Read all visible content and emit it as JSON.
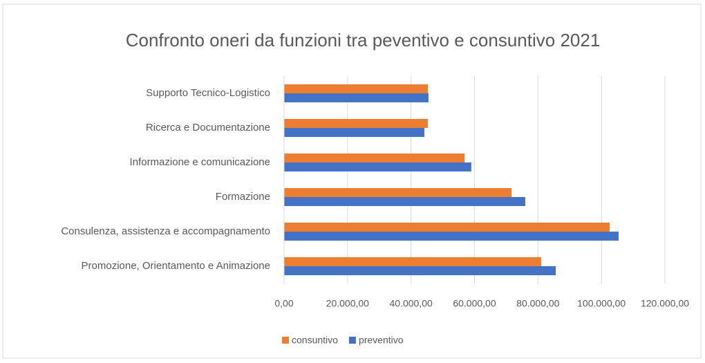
{
  "chart_data": {
    "type": "hbar",
    "title": "Confronto oneri da funzioni tra peventivo e consuntivo 2021",
    "categories": [
      "Supporto Tecnico-Logistico",
      "Ricerca e Documentazione",
      "Informazione e comunicazione",
      "Formazione",
      "Consulenza, assistenza e accompagnamento",
      "Promozione, Orientamento e Animazione"
    ],
    "series": [
      {
        "name": "consuntivo",
        "color": "#ed7d31",
        "values": [
          45300,
          45300,
          56900,
          71700,
          102600,
          81000
        ]
      },
      {
        "name": "preventivo",
        "color": "#4472c4",
        "values": [
          45500,
          44200,
          59000,
          76000,
          105400,
          85600
        ]
      }
    ],
    "xlim": [
      0,
      120000
    ],
    "xticks": [
      {
        "value": 0,
        "label": "0,00"
      },
      {
        "value": 20000,
        "label": "20.000,00"
      },
      {
        "value": 40000,
        "label": "40.000,00"
      },
      {
        "value": 60000,
        "label": "60.000,00"
      },
      {
        "value": 80000,
        "label": "80.000,00"
      },
      {
        "value": 100000,
        "label": "100.000,00"
      },
      {
        "value": 120000,
        "label": "120.000,00"
      }
    ],
    "grid": true,
    "legend": "bottom"
  }
}
